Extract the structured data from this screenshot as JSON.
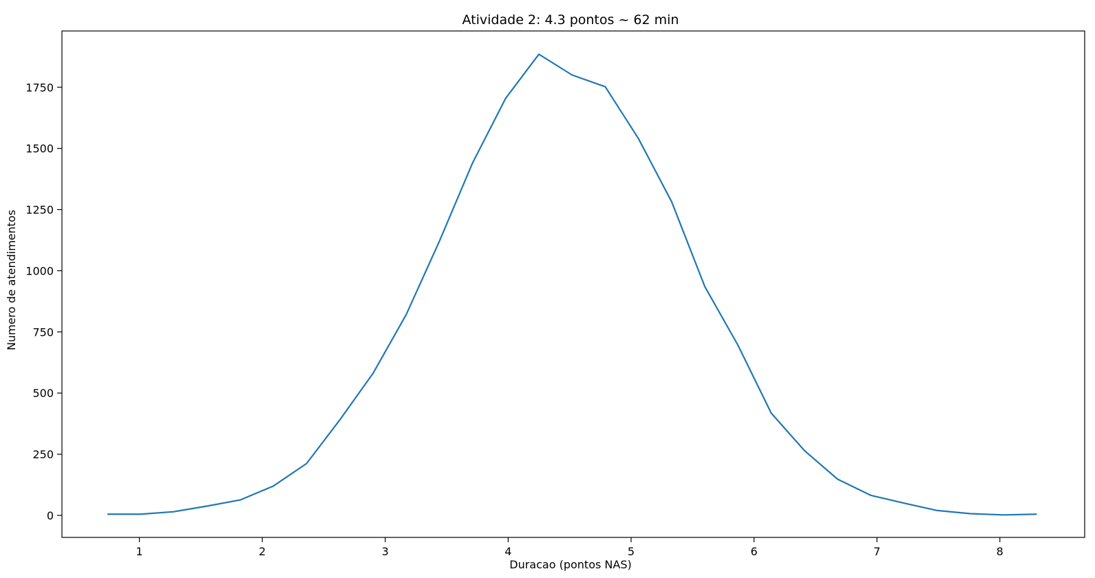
{
  "chart_data": {
    "type": "line",
    "title": "Atividade 2: 4.3 pontos ~ 62 min",
    "xlabel": "Duracao (pontos NAS)",
    "ylabel": "Numero de atendimentos",
    "xlim": [
      0.37,
      8.69
    ],
    "ylim": [
      -90,
      1980
    ],
    "xticks": [
      1,
      2,
      3,
      4,
      5,
      6,
      7,
      8
    ],
    "yticks": [
      0,
      250,
      500,
      750,
      1000,
      1250,
      1500,
      1750
    ],
    "grid": false,
    "color": "#1f77b4",
    "series": [
      {
        "x": [
          0.74,
          1.01,
          1.28,
          1.55,
          1.82,
          2.09,
          2.36,
          2.63,
          2.9,
          3.17,
          3.44,
          3.71,
          3.98,
          4.25,
          4.52,
          4.79,
          5.06,
          5.33,
          5.6,
          5.87,
          6.14,
          6.41,
          6.68,
          6.95,
          7.22,
          7.49,
          7.76,
          8.03,
          8.3
        ],
        "y": [
          5,
          5,
          15,
          38,
          63,
          120,
          212,
          390,
          580,
          820,
          1120,
          1440,
          1705,
          1885,
          1800,
          1752,
          1540,
          1282,
          935,
          695,
          418,
          265,
          148,
          82,
          50,
          20,
          7,
          2,
          5
        ]
      }
    ]
  }
}
